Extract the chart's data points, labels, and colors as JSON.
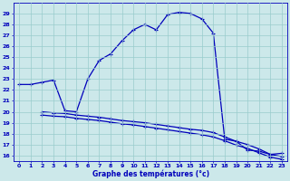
{
  "bg_color": "#cce8ea",
  "line_color": "#0000bb",
  "grid_color": "#99cccc",
  "ylabel_values": [
    16,
    17,
    18,
    19,
    20,
    21,
    22,
    23,
    24,
    25,
    26,
    27,
    28,
    29
  ],
  "xlabel_values": [
    0,
    1,
    2,
    3,
    4,
    5,
    6,
    7,
    8,
    9,
    10,
    11,
    12,
    13,
    14,
    15,
    16,
    17,
    18,
    19,
    20,
    21,
    22,
    23
  ],
  "xlabel_label": "Graphe des températures (°c)",
  "line1_x": [
    0,
    1,
    2,
    3,
    4,
    5,
    6,
    7,
    8,
    9,
    10,
    11,
    12,
    13,
    14,
    15,
    16,
    17,
    18,
    19,
    20,
    21,
    22,
    23
  ],
  "line1_y": [
    22.5,
    22.5,
    22.7,
    22.9,
    20.1,
    20.0,
    23.0,
    24.7,
    25.3,
    26.5,
    27.5,
    28.0,
    27.5,
    28.9,
    29.1,
    29.0,
    28.5,
    27.2,
    17.5,
    17.3,
    16.5,
    16.4,
    16.1,
    16.2
  ],
  "line2_x": [
    2,
    3,
    4,
    5,
    6,
    7,
    8,
    9,
    10,
    11,
    12,
    13,
    14,
    15,
    16,
    17,
    18,
    19,
    20,
    21,
    22,
    23
  ],
  "line2_y": [
    20.0,
    19.9,
    19.85,
    19.7,
    19.6,
    19.5,
    19.35,
    19.2,
    19.1,
    19.0,
    18.85,
    18.7,
    18.55,
    18.4,
    18.3,
    18.1,
    17.7,
    17.3,
    17.0,
    16.6,
    16.1,
    15.9
  ],
  "line3_x": [
    2,
    3,
    4,
    5,
    6,
    7,
    8,
    9,
    10,
    11,
    12,
    13,
    14,
    15,
    16,
    17,
    18,
    19,
    20,
    21,
    22,
    23
  ],
  "line3_y": [
    19.7,
    19.6,
    19.55,
    19.4,
    19.3,
    19.2,
    19.05,
    18.9,
    18.8,
    18.65,
    18.5,
    18.35,
    18.2,
    18.05,
    17.9,
    17.7,
    17.35,
    16.95,
    16.65,
    16.25,
    15.85,
    15.65
  ],
  "ylim": [
    15.5,
    30
  ],
  "xlim": [
    -0.5,
    23.5
  ],
  "marker": "+",
  "markersize": 3.5,
  "linewidth": 0.9,
  "figsize": [
    3.2,
    2.0
  ],
  "dpi": 100
}
